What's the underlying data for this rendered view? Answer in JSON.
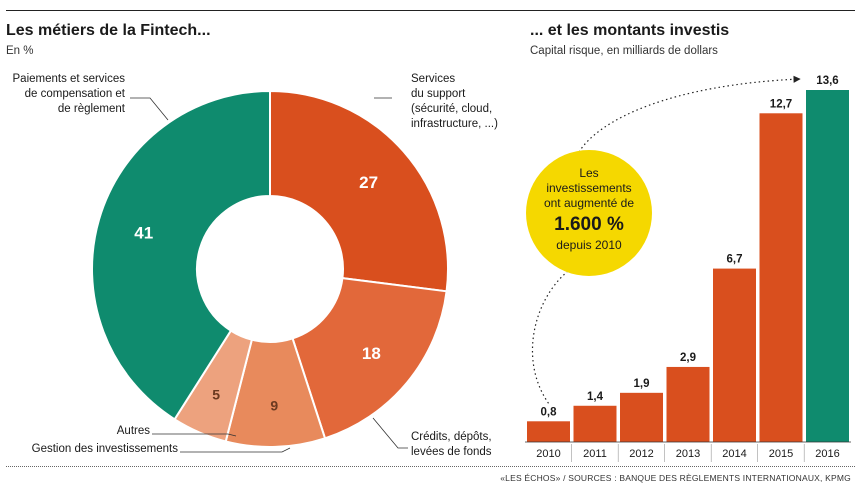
{
  "left": {
    "title": "Les métiers de la Fintech...",
    "subtitle": "En %"
  },
  "right": {
    "title": "... et les montants investis",
    "subtitle": "Capital risque, en milliards de dollars"
  },
  "source": "«LES ÉCHOS» / SOURCES : BANQUE DES RÈGLEMENTS INTERNATIONAUX, KPMG",
  "callout": {
    "line1": "Les",
    "line2": "investissements",
    "line3": "ont augmenté de",
    "highlight": "1.600 %",
    "line5": "depuis 2010",
    "color": "#f5d800"
  },
  "chart_data": [
    {
      "type": "pie",
      "title": "Les métiers de la Fintech...",
      "unit": "En %",
      "slices": [
        {
          "label": "Services du support (sécurité, cloud, infrastructure, ...)",
          "label_lines": [
            "Services",
            "du support",
            "(sécurité, cloud,",
            "infrastructure, ...)"
          ],
          "value": 27,
          "color": "#d94f1e"
        },
        {
          "label": "Crédits, dépôts, levées de fonds",
          "label_lines": [
            "Crédits, dépôts,",
            "levées de fonds"
          ],
          "value": 18,
          "color": "#e2683a"
        },
        {
          "label": "Gestion des investissements",
          "label_lines": [
            "Gestion des investissements"
          ],
          "value": 9,
          "color": "#e88a5c"
        },
        {
          "label": "Autres",
          "label_lines": [
            "Autres"
          ],
          "value": 5,
          "color": "#eda27e"
        },
        {
          "label": "Paiements et services de compensation et de règlement",
          "label_lines": [
            "Paiements et services",
            "de compensation et",
            "de règlement"
          ],
          "value": 41,
          "color": "#0f8b6e"
        }
      ]
    },
    {
      "type": "bar",
      "title": "... et les montants investis",
      "ylabel": "Capital risque, en milliards de dollars",
      "categories": [
        "2010",
        "2011",
        "2012",
        "2013",
        "2014",
        "2015",
        "2016"
      ],
      "values": [
        0.8,
        1.4,
        1.9,
        2.9,
        6.7,
        12.7,
        13.6
      ],
      "value_labels": [
        "0,8",
        "1,4",
        "1,9",
        "2,9",
        "6,7",
        "12,7",
        "13,6"
      ],
      "colors": [
        "#d94f1e",
        "#d94f1e",
        "#d94f1e",
        "#d94f1e",
        "#d94f1e",
        "#d94f1e",
        "#0f8b6e"
      ],
      "ylim": [
        0,
        13.6
      ]
    }
  ]
}
